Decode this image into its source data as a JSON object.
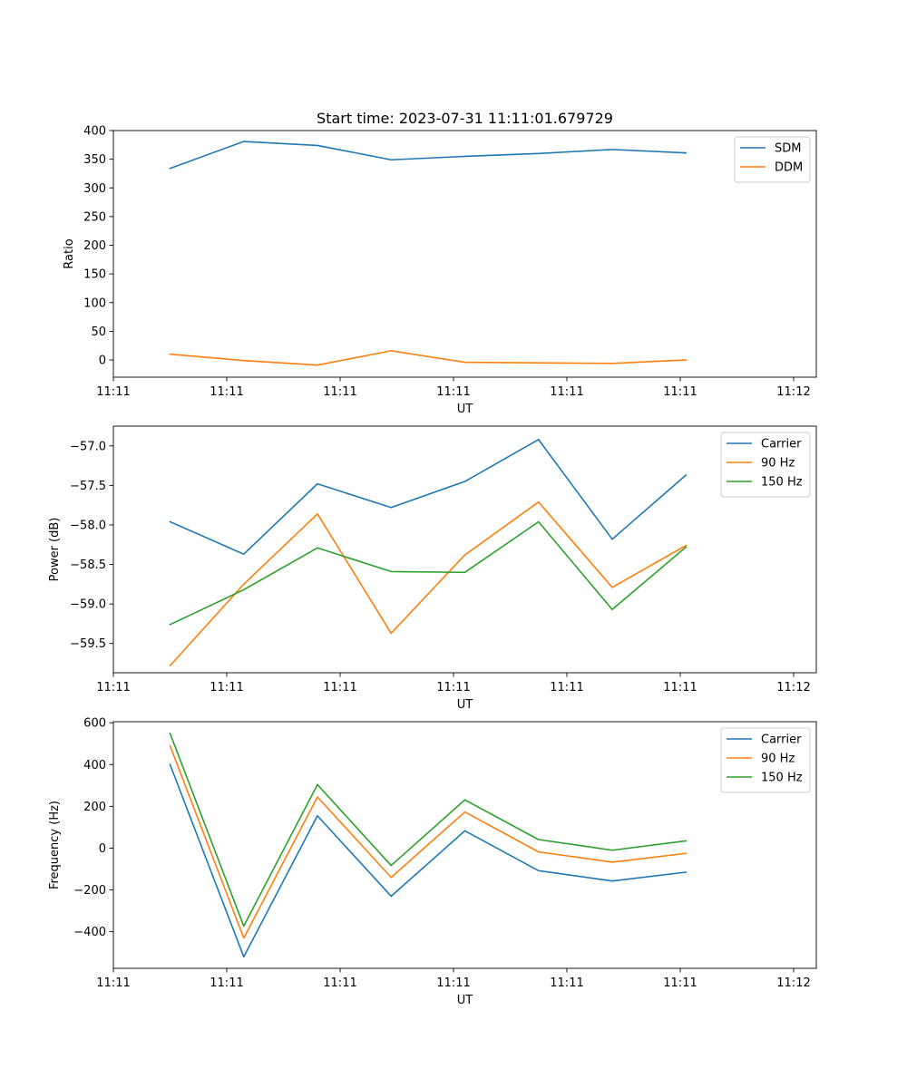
{
  "figure_title": "Start time: 2023-07-31 11:11:01.679729",
  "colors": {
    "blue": "#1f77b4",
    "orange": "#ff7f0e",
    "green": "#2ca02c"
  },
  "chart_data": [
    {
      "type": "line",
      "title": "Start time: 2023-07-31 11:11:01.679729",
      "xlabel": "UT",
      "ylabel": "Ratio",
      "legend_position": "top-right",
      "xlim": [
        0,
        6.2
      ],
      "x": [
        0.5,
        1.15,
        1.8,
        2.45,
        3.1,
        3.75,
        4.4,
        5.05
      ],
      "xticks": [
        0,
        1,
        2,
        3,
        4,
        5,
        6
      ],
      "xtick_labels": [
        "11:11",
        "11:11",
        "11:11",
        "11:11",
        "11:11",
        "11:11",
        "11:12"
      ],
      "ylim": [
        -30,
        400
      ],
      "yticks": [
        0,
        50,
        100,
        150,
        200,
        250,
        300,
        350,
        400
      ],
      "ytick_labels": [
        "0",
        "50",
        "100",
        "150",
        "200",
        "250",
        "300",
        "350",
        "400"
      ],
      "series": [
        {
          "name": "SDM",
          "color": "#1f77b4",
          "values": [
            334,
            381,
            374,
            349,
            355,
            360,
            367,
            361
          ]
        },
        {
          "name": "DDM",
          "color": "#ff7f0e",
          "values": [
            10,
            -1,
            -9,
            16,
            -4,
            -5,
            -6,
            0
          ]
        }
      ]
    },
    {
      "type": "line",
      "title": "",
      "xlabel": "UT",
      "ylabel": "Power (dB)",
      "legend_position": "top-right",
      "xlim": [
        0,
        6.2
      ],
      "x": [
        0.5,
        1.15,
        1.8,
        2.45,
        3.1,
        3.75,
        4.4,
        5.05
      ],
      "xticks": [
        0,
        1,
        2,
        3,
        4,
        5,
        6
      ],
      "xtick_labels": [
        "11:11",
        "11:11",
        "11:11",
        "11:11",
        "11:11",
        "11:11",
        "11:12"
      ],
      "ylim": [
        -59.87,
        -56.75
      ],
      "yticks": [
        -59.5,
        -59.0,
        -58.5,
        -58.0,
        -57.5,
        -57.0
      ],
      "ytick_labels": [
        "−59.5",
        "−59.0",
        "−58.5",
        "−58.0",
        "−57.5",
        "−57.0"
      ],
      "series": [
        {
          "name": "Carrier",
          "color": "#1f77b4",
          "values": [
            -57.96,
            -58.37,
            -57.48,
            -57.78,
            -57.45,
            -56.92,
            -58.18,
            -57.37
          ]
        },
        {
          "name": "90 Hz",
          "color": "#ff7f0e",
          "values": [
            -59.78,
            -58.75,
            -57.86,
            -59.37,
            -58.38,
            -57.71,
            -58.79,
            -58.26
          ]
        },
        {
          "name": "150 Hz",
          "color": "#2ca02c",
          "values": [
            -59.26,
            -58.82,
            -58.29,
            -58.59,
            -58.6,
            -57.96,
            -59.07,
            -58.28
          ]
        }
      ]
    },
    {
      "type": "line",
      "title": "",
      "xlabel": "UT",
      "ylabel": "Frequency (Hz)",
      "legend_position": "top-right",
      "xlim": [
        0,
        6.2
      ],
      "x": [
        0.5,
        1.15,
        1.8,
        2.45,
        3.1,
        3.75,
        4.4,
        5.05
      ],
      "xticks": [
        0,
        1,
        2,
        3,
        4,
        5,
        6
      ],
      "xtick_labels": [
        "11:11",
        "11:11",
        "11:11",
        "11:11",
        "11:11",
        "11:11",
        "11:12"
      ],
      "ylim": [
        -575,
        605
      ],
      "yticks": [
        -400,
        -200,
        0,
        200,
        400,
        600
      ],
      "ytick_labels": [
        "−400",
        "−200",
        "0",
        "200",
        "400",
        "600"
      ],
      "series": [
        {
          "name": "Carrier",
          "color": "#1f77b4",
          "values": [
            400,
            -520,
            155,
            -230,
            83,
            -108,
            -157,
            -115
          ]
        },
        {
          "name": "90 Hz",
          "color": "#ff7f0e",
          "values": [
            490,
            -430,
            245,
            -140,
            173,
            -18,
            -67,
            -25
          ]
        },
        {
          "name": "150 Hz",
          "color": "#2ca02c",
          "values": [
            549,
            -373,
            304,
            -83,
            231,
            41,
            -10,
            35
          ]
        }
      ]
    }
  ]
}
